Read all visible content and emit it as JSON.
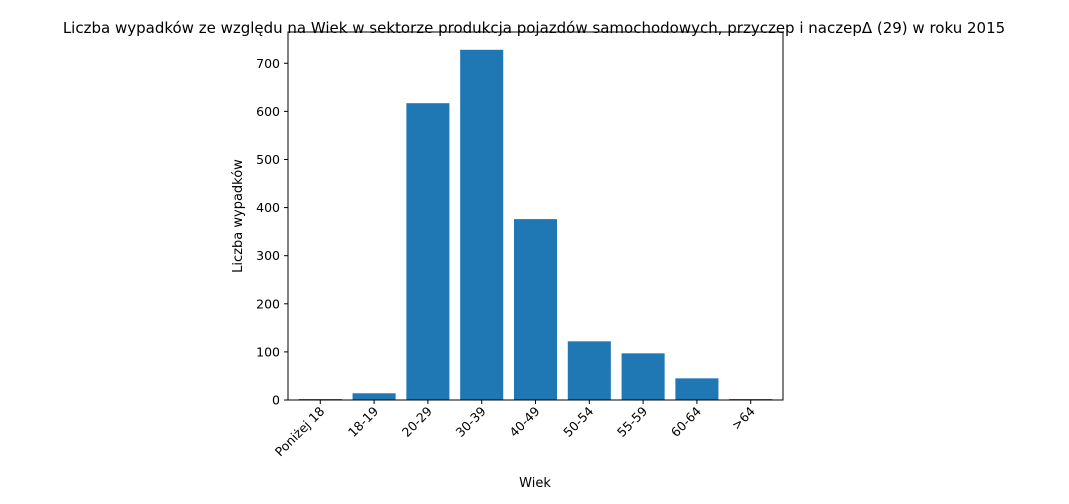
{
  "chart_data": {
    "type": "bar",
    "title": "Liczba wypadków ze względu na Wiek w sektorze produkcja pojazdów samochodowych, przyczep i naczepΔ (29) w roku 2015",
    "xlabel": "Wiek",
    "ylabel": "Liczba wypadków",
    "categories": [
      "Poniżej 18",
      "18-19",
      "20-29",
      "30-39",
      "40-49",
      "50-54",
      "55-59",
      "60-64",
      ">64"
    ],
    "values": [
      2,
      14,
      617,
      728,
      376,
      122,
      97,
      45,
      2
    ],
    "ylim": [
      0,
      765
    ],
    "yticks": [
      0,
      100,
      200,
      300,
      400,
      500,
      600,
      700
    ],
    "bar_color": "#1f77b4",
    "grid": false,
    "legend": "none"
  }
}
